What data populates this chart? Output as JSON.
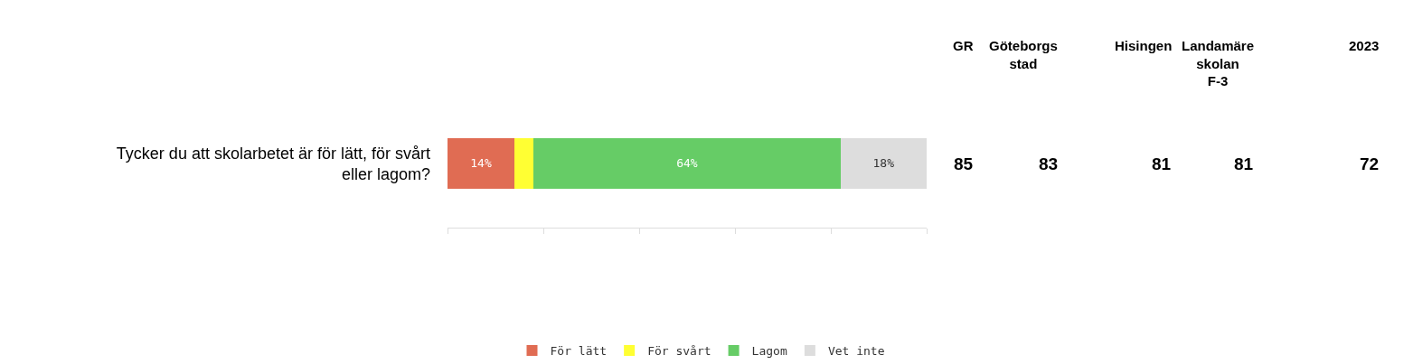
{
  "chart_data": [
    {
      "type": "bar",
      "orientation": "horizontal",
      "stacked": true,
      "categories": [
        "Tycker du att skolarbetet är för lätt, för svårt eller lagom?"
      ],
      "series": [
        {
          "name": "För lätt",
          "color": "#e06c53",
          "values": [
            14
          ],
          "value_labels": [
            "14%"
          ]
        },
        {
          "name": "För svårt",
          "color": "#ffff33",
          "values": [
            4
          ],
          "value_labels": [
            null
          ]
        },
        {
          "name": "Lagom",
          "color": "#66cc66",
          "values": [
            64
          ],
          "value_labels": [
            "64%"
          ]
        },
        {
          "name": "Vet inte",
          "color": "#dddddd",
          "values": [
            18
          ],
          "value_labels": [
            "18%"
          ]
        }
      ],
      "xlim": [
        0,
        100
      ],
      "tick_labels": "y",
      "legend": "bottom"
    },
    {
      "type": "other",
      "annotations": [
        "GR",
        "Göteborgs stad",
        "Hisingen",
        "Landamäreskolan F-3",
        "2023",
        "85",
        "83",
        "81",
        "81",
        "72"
      ]
    }
  ]
}
